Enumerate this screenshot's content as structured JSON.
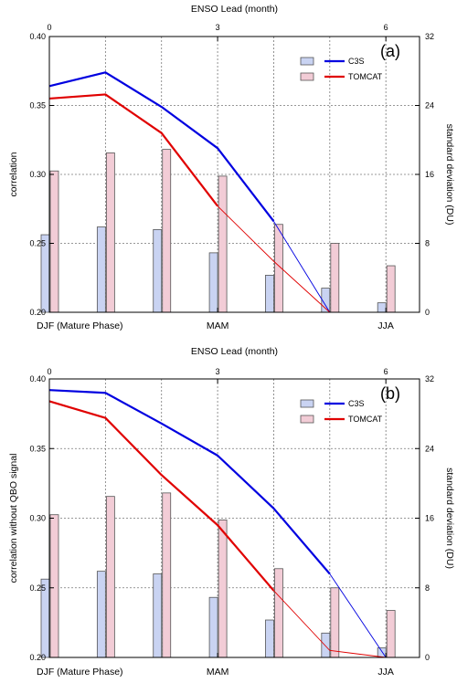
{
  "chart_data": [
    {
      "type": "bar+line",
      "panel_label": "(a)",
      "top_axis_title": "ENSO Lead (month)",
      "top_ticks": [
        "0",
        "3",
        "6"
      ],
      "xlim": [
        0,
        6.6
      ],
      "x": [
        0,
        1,
        2,
        3,
        4,
        5,
        6
      ],
      "bottom_ticks": [
        {
          "x": 0,
          "label": "DJF (Mature Phase)"
        },
        {
          "x": 3,
          "label": "MAM"
        },
        {
          "x": 6,
          "label": "JJA"
        }
      ],
      "ylabel": "correlation",
      "ylim": [
        0.2,
        0.4
      ],
      "yticks": [
        "0.20",
        "0.25",
        "0.30",
        "0.35",
        "0.40"
      ],
      "y2label": "standard deviation (DU)",
      "y2lim": [
        0,
        32
      ],
      "y2ticks": [
        "0",
        "8",
        "16",
        "24",
        "32"
      ],
      "grid": "dashed",
      "legend_position": "top-right",
      "series": [
        {
          "name": "C3S",
          "color": "#0000e0",
          "line": [
            0.364,
            0.374,
            0.349,
            0.319,
            0.266,
            0.2,
            0.2
          ],
          "bar_color": "#c9d3f2",
          "std": [
            9.0,
            9.9,
            9.6,
            6.9,
            4.3,
            2.8,
            1.1
          ]
        },
        {
          "name": "TOMCAT",
          "color": "#e00000",
          "line": [
            0.355,
            0.358,
            0.33,
            0.277,
            0.237,
            0.2,
            0.2
          ],
          "bar_color": "#f2ccd6",
          "std": [
            16.4,
            18.5,
            18.9,
            15.8,
            10.2,
            8.0,
            5.4
          ]
        }
      ],
      "thick_until_x": [
        4,
        3
      ]
    },
    {
      "type": "bar+line",
      "panel_label": "(b)",
      "top_axis_title": "ENSO Lead (month)",
      "top_ticks": [
        "0",
        "3",
        "6"
      ],
      "xlim": [
        0,
        6.6
      ],
      "x": [
        0,
        1,
        2,
        3,
        4,
        5,
        6
      ],
      "bottom_ticks": [
        {
          "x": 0,
          "label": "DJF (Mature Phase)"
        },
        {
          "x": 3,
          "label": "MAM"
        },
        {
          "x": 6,
          "label": "JJA"
        }
      ],
      "ylabel": "correlation without QBO signal",
      "ylim": [
        0.2,
        0.4
      ],
      "yticks": [
        "0.20",
        "0.25",
        "0.30",
        "0.35",
        "0.40"
      ],
      "y2label": "standard deviation (DU)",
      "y2lim": [
        0,
        32
      ],
      "y2ticks": [
        "0",
        "8",
        "16",
        "24",
        "32"
      ],
      "grid": "dashed",
      "legend_position": "top-right",
      "series": [
        {
          "name": "C3S",
          "color": "#0000e0",
          "line": [
            0.392,
            0.39,
            0.368,
            0.345,
            0.307,
            0.26,
            0.2
          ],
          "bar_color": "#c9d3f2",
          "std": [
            9.0,
            9.9,
            9.6,
            6.9,
            4.3,
            2.8,
            1.1
          ]
        },
        {
          "name": "TOMCAT",
          "color": "#e00000",
          "line": [
            0.384,
            0.372,
            0.331,
            0.295,
            0.248,
            0.205,
            0.2
          ],
          "bar_color": "#f2ccd6",
          "std": [
            16.4,
            18.5,
            18.9,
            15.8,
            10.2,
            8.0,
            5.4
          ]
        }
      ],
      "thick_until_x": [
        5,
        4
      ]
    }
  ]
}
